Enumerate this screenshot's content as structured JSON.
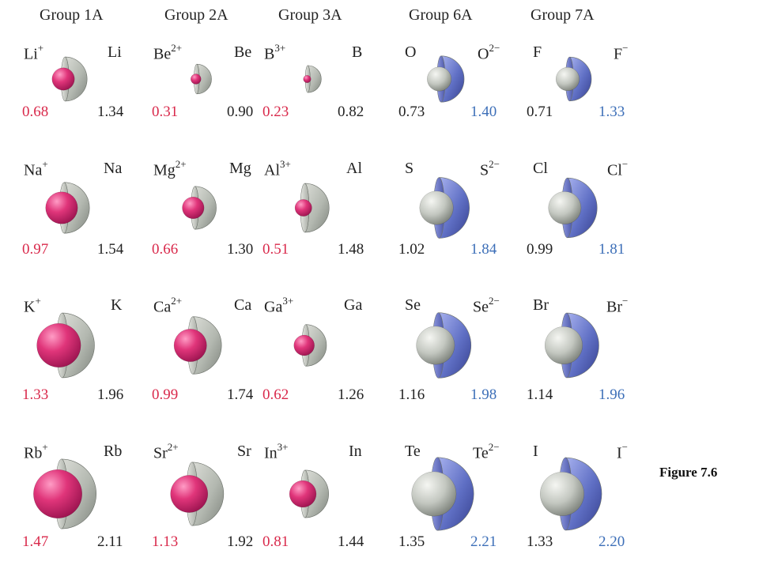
{
  "headers": [
    "Group 1A",
    "Group 2A",
    "Group 3A",
    "Group 6A",
    "Group 7A"
  ],
  "colors": {
    "cation": "#e0357a",
    "anion": "#5f6fc4",
    "neutral": "#b3b8b0",
    "cation_text": "#d9294b",
    "anion_text": "#3d6fb8"
  },
  "rows": [
    [
      {
        "ion": "Li",
        "ion_charge": "+",
        "atom": "Li",
        "ion_r": "0.68",
        "atom_r": "1.34",
        "kind": "cation"
      },
      {
        "ion": "Be",
        "ion_charge": "2+",
        "atom": "Be",
        "ion_r": "0.31",
        "atom_r": "0.90",
        "kind": "cation"
      },
      {
        "ion": "B",
        "ion_charge": "3+",
        "atom": "B",
        "ion_r": "0.23",
        "atom_r": "0.82",
        "kind": "cation"
      },
      {
        "atom": "O",
        "ion": "O",
        "ion_charge": "2−",
        "atom_r": "0.73",
        "ion_r": "1.40",
        "kind": "anion"
      },
      {
        "atom": "F",
        "ion": "F",
        "ion_charge": "−",
        "atom_r": "0.71",
        "ion_r": "1.33",
        "kind": "anion"
      }
    ],
    [
      {
        "ion": "Na",
        "ion_charge": "+",
        "atom": "Na",
        "ion_r": "0.97",
        "atom_r": "1.54",
        "kind": "cation"
      },
      {
        "ion": "Mg",
        "ion_charge": "2+",
        "atom": "Mg",
        "ion_r": "0.66",
        "atom_r": "1.30",
        "kind": "cation"
      },
      {
        "ion": "Al",
        "ion_charge": "3+",
        "atom": "Al",
        "ion_r": "0.51",
        "atom_r": "1.48",
        "kind": "cation"
      },
      {
        "atom": "S",
        "ion": "S",
        "ion_charge": "2−",
        "atom_r": "1.02",
        "ion_r": "1.84",
        "kind": "anion"
      },
      {
        "atom": "Cl",
        "ion": "Cl",
        "ion_charge": "−",
        "atom_r": "0.99",
        "ion_r": "1.81",
        "kind": "anion"
      }
    ],
    [
      {
        "ion": "K",
        "ion_charge": "+",
        "atom": "K",
        "ion_r": "1.33",
        "atom_r": "1.96",
        "kind": "cation"
      },
      {
        "ion": "Ca",
        "ion_charge": "2+",
        "atom": "Ca",
        "ion_r": "0.99",
        "atom_r": "1.74",
        "kind": "cation"
      },
      {
        "ion": "Ga",
        "ion_charge": "3+",
        "atom": "Ga",
        "ion_r": "0.62",
        "atom_r": "1.26",
        "kind": "cation"
      },
      {
        "atom": "Se",
        "ion": "Se",
        "ion_charge": "2−",
        "atom_r": "1.16",
        "ion_r": "1.98",
        "kind": "anion"
      },
      {
        "atom": "Br",
        "ion": "Br",
        "ion_charge": "−",
        "atom_r": "1.14",
        "ion_r": "1.96",
        "kind": "anion"
      }
    ],
    [
      {
        "ion": "Rb",
        "ion_charge": "+",
        "atom": "Rb",
        "ion_r": "1.47",
        "atom_r": "2.11",
        "kind": "cation"
      },
      {
        "ion": "Sr",
        "ion_charge": "2+",
        "atom": "Sr",
        "ion_r": "1.13",
        "atom_r": "1.92",
        "kind": "cation"
      },
      {
        "ion": "In",
        "ion_charge": "3+",
        "atom": "In",
        "ion_r": "0.81",
        "atom_r": "1.44",
        "kind": "cation"
      },
      {
        "atom": "Te",
        "ion": "Te",
        "ion_charge": "2−",
        "atom_r": "1.35",
        "ion_r": "2.21",
        "kind": "anion"
      },
      {
        "atom": "I",
        "ion": "I",
        "ion_charge": "−",
        "atom_r": "1.33",
        "ion_r": "2.20",
        "kind": "anion"
      }
    ]
  ],
  "figure_label": "Figure 7.6"
}
